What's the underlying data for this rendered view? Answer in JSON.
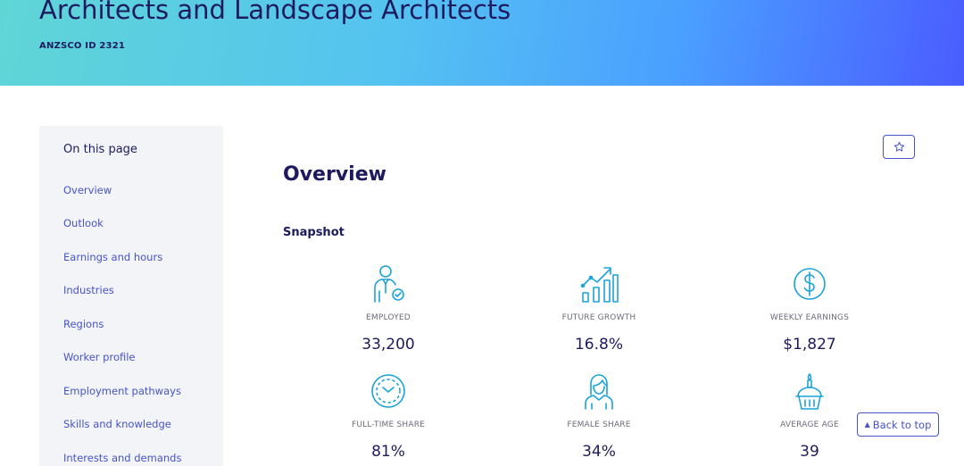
{
  "header": {
    "title": "Architects and Landscape Architects",
    "anzsco": "ANZSCO ID 2321"
  },
  "sidebar": {
    "heading": "On this page",
    "items": [
      {
        "label": "Overview"
      },
      {
        "label": "Outlook"
      },
      {
        "label": "Earnings and hours"
      },
      {
        "label": "Industries"
      },
      {
        "label": "Regions"
      },
      {
        "label": "Worker profile"
      },
      {
        "label": "Employment pathways"
      },
      {
        "label": "Skills and knowledge"
      },
      {
        "label": "Interests and demands"
      }
    ]
  },
  "main": {
    "title": "Overview",
    "snapshot_title": "Snapshot",
    "stats": [
      {
        "label": "EMPLOYED",
        "value": "33,200",
        "icon": "worker-icon"
      },
      {
        "label": "FUTURE GROWTH",
        "value": "16.8%",
        "icon": "growth-chart-icon"
      },
      {
        "label": "WEEKLY EARNINGS",
        "value": "$1,827",
        "icon": "dollar-icon"
      },
      {
        "label": "FULL-TIME SHARE",
        "value": "81%",
        "icon": "clock-icon"
      },
      {
        "label": "FEMALE SHARE",
        "value": "34%",
        "icon": "female-icon"
      },
      {
        "label": "AVERAGE AGE",
        "value": "39",
        "icon": "cake-icon"
      }
    ]
  },
  "controls": {
    "back_to_top": "Back to top"
  },
  "colors": {
    "accent": "#4753c9",
    "icon": "#1aa3d9",
    "heading": "#1d1a5e"
  }
}
